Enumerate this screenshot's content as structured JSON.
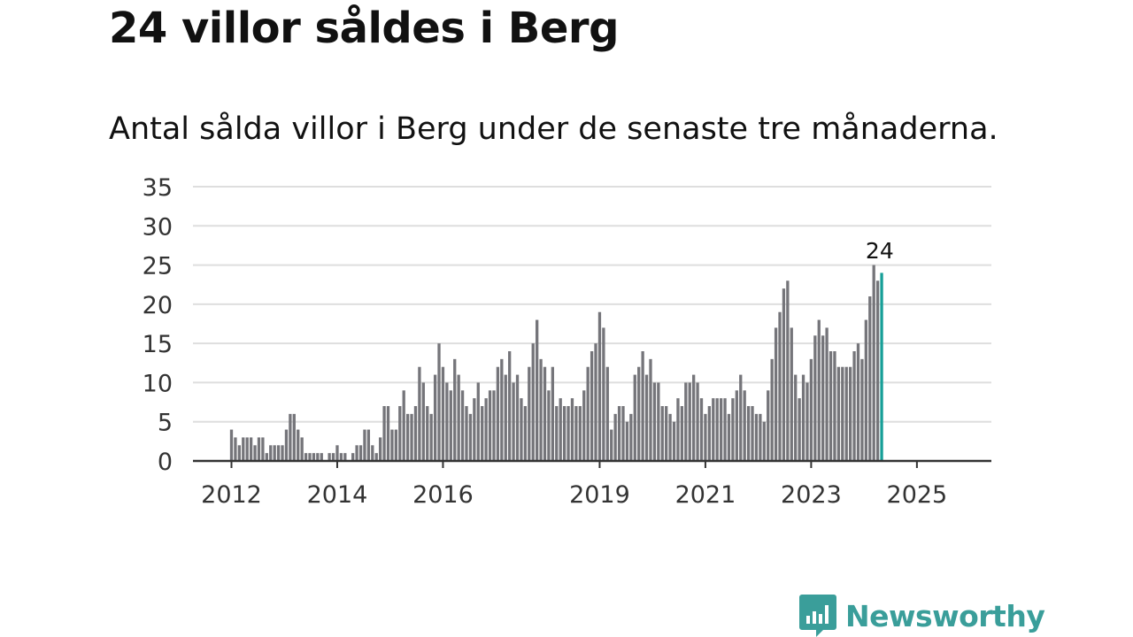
{
  "title": "24 villor såldes i Berg",
  "subtitle": "Antal sålda villor i Berg under de senaste tre månaderna.",
  "brand": {
    "name": "Newsworthy"
  },
  "colors": {
    "bar": "#75757a",
    "highlight": "#179f98",
    "grid": "#dedede",
    "axis": "#333333",
    "brand": "#3a9e9a"
  },
  "chart_data": {
    "type": "bar",
    "title": "24 villor såldes i Berg",
    "subtitle": "Antal sålda villor i Berg under de senaste tre månaderna.",
    "xlabel": "",
    "ylabel": "",
    "ylim": [
      0,
      35
    ],
    "yticks": [
      0,
      5,
      10,
      15,
      20,
      25,
      30,
      35
    ],
    "grid": true,
    "frequency": "monthly, rolling three-month count",
    "start": "2012-01",
    "xticks": [
      {
        "label": "2012",
        "index": 0
      },
      {
        "label": "2014",
        "index": 27
      },
      {
        "label": "2016",
        "index": 54
      },
      {
        "label": "2019",
        "index": 94
      },
      {
        "label": "2021",
        "index": 121
      },
      {
        "label": "2023",
        "index": 148
      },
      {
        "label": "2025",
        "index": 175
      }
    ],
    "values": [
      4,
      3,
      2,
      3,
      3,
      3,
      2,
      3,
      3,
      1,
      2,
      2,
      2,
      2,
      4,
      6,
      6,
      4,
      3,
      1,
      1,
      1,
      1,
      1,
      0,
      1,
      1,
      2,
      1,
      1,
      0,
      1,
      2,
      2,
      4,
      4,
      2,
      1,
      3,
      7,
      7,
      4,
      4,
      7,
      9,
      6,
      6,
      7,
      12,
      10,
      7,
      6,
      11,
      15,
      12,
      10,
      9,
      13,
      11,
      9,
      7,
      6,
      8,
      10,
      7,
      8,
      9,
      9,
      12,
      13,
      11,
      14,
      10,
      11,
      8,
      7,
      12,
      15,
      18,
      13,
      12,
      9,
      12,
      7,
      8,
      7,
      7,
      8,
      7,
      7,
      9,
      12,
      14,
      15,
      19,
      17,
      12,
      4,
      6,
      7,
      7,
      5,
      6,
      11,
      12,
      14,
      11,
      13,
      10,
      10,
      7,
      7,
      6,
      5,
      8,
      7,
      10,
      10,
      11,
      10,
      8,
      6,
      7,
      8,
      8,
      8,
      8,
      6,
      8,
      9,
      11,
      9,
      7,
      7,
      6,
      6,
      5,
      9,
      13,
      17,
      19,
      22,
      23,
      17,
      11,
      8,
      11,
      10,
      13,
      16,
      18,
      16,
      17,
      14,
      14,
      12,
      12,
      12,
      12,
      14,
      15,
      13,
      18,
      21,
      25,
      23,
      24
    ],
    "highlight_last": true,
    "last_label": "24"
  }
}
